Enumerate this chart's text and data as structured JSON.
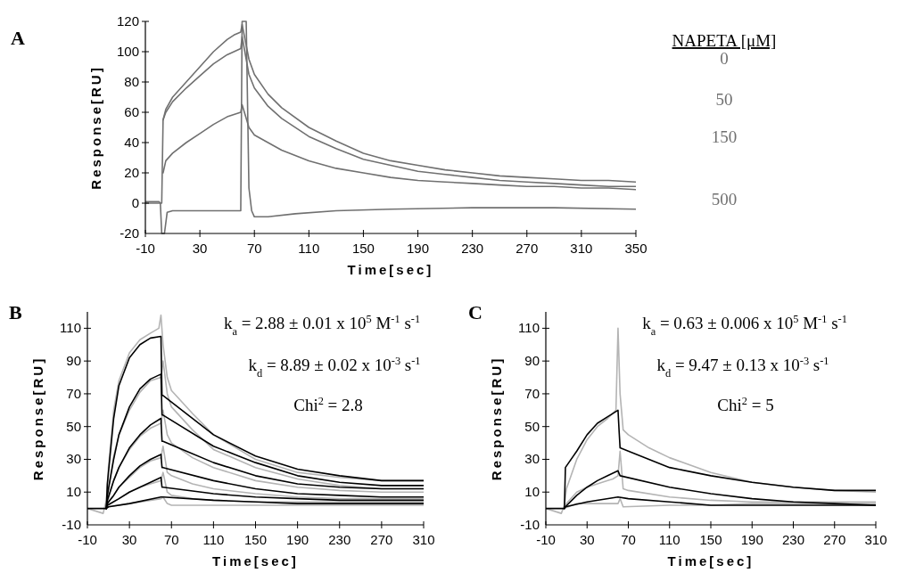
{
  "chart_data": [
    {
      "type": "line",
      "title": "A",
      "xlabel": "Time[sec]",
      "ylabel": "Response[RU]",
      "xlim": [
        -10,
        350
      ],
      "xticks": [
        -10,
        30,
        70,
        110,
        150,
        190,
        230,
        270,
        310,
        350
      ],
      "ylim": [
        -20,
        120
      ],
      "yticks": [
        -20,
        0,
        20,
        40,
        60,
        80,
        100,
        120
      ],
      "legend": "right",
      "legend_title": "NAPETA [μM]",
      "series": [
        {
          "name": "0",
          "color": "#707070",
          "x": [
            -10,
            0,
            2,
            3,
            5,
            10,
            20,
            30,
            40,
            50,
            55,
            60,
            61,
            66,
            70,
            80,
            90,
            110,
            130,
            150,
            170,
            190,
            210,
            230,
            250,
            270,
            290,
            310,
            330,
            350
          ],
          "values": [
            0,
            0,
            0,
            55,
            62,
            70,
            80,
            90,
            100,
            108,
            111,
            113,
            118,
            95,
            85,
            72,
            63,
            50,
            41,
            33,
            28,
            25,
            22,
            20,
            18,
            17,
            16,
            15,
            15,
            14
          ]
        },
        {
          "name": "50",
          "color": "#707070",
          "x": [
            3,
            5,
            10,
            20,
            30,
            40,
            50,
            60,
            61,
            66,
            70,
            80,
            90,
            110,
            130,
            150,
            170,
            190,
            210,
            230,
            250,
            270,
            290,
            310,
            330,
            350
          ],
          "values": [
            55,
            60,
            67,
            76,
            84,
            92,
            98,
            102,
            110,
            85,
            76,
            64,
            56,
            44,
            36,
            29,
            25,
            21,
            19,
            17,
            15,
            14,
            13,
            12,
            11,
            11
          ]
        },
        {
          "name": "150",
          "color": "#707070",
          "x": [
            3,
            5,
            10,
            20,
            30,
            40,
            50,
            60,
            61,
            66,
            70,
            80,
            90,
            110,
            130,
            150,
            170,
            190,
            210,
            230,
            250,
            270,
            290,
            310,
            330,
            350
          ],
          "values": [
            20,
            28,
            33,
            40,
            46,
            52,
            57,
            60,
            65,
            50,
            45,
            40,
            35,
            28,
            23,
            20,
            17,
            15,
            14,
            13,
            12,
            11,
            11,
            10,
            10,
            9
          ]
        },
        {
          "name": "500",
          "color": "#707070",
          "x": [
            -10,
            0,
            1,
            2,
            4,
            6,
            10,
            30,
            60,
            61,
            64,
            66,
            68,
            70,
            80,
            100,
            130,
            170,
            230,
            290,
            350
          ],
          "values": [
            1,
            1,
            0,
            -20,
            -20,
            -6,
            -5,
            -5,
            -5,
            120,
            120,
            10,
            -5,
            -9,
            -9,
            -7,
            -5,
            -4,
            -3,
            -3,
            -4
          ]
        }
      ]
    },
    {
      "type": "line",
      "title": "B",
      "xlabel": "Time[sec]",
      "ylabel": "Response[RU]",
      "xlim": [
        -10,
        310
      ],
      "xticks": [
        -10,
        30,
        70,
        110,
        150,
        190,
        230,
        270,
        310
      ],
      "ylim": [
        -10,
        120
      ],
      "yticks": [
        -10,
        10,
        30,
        50,
        70,
        90,
        110
      ],
      "annotations": [
        "k$_{a}$ = 2.88 ± 0.01 x 10$^{5}$ M$^{-1}$ s$^{-1}$",
        "k$_{d}$ = 8.89 ± 0.02 x 10$^{-3}$ s$^{-1}$",
        "Chi$^{2}$ = 2.8"
      ],
      "series": [
        {
          "color": "#b4b4b4",
          "x": [
            -10,
            5,
            8,
            10,
            15,
            20,
            30,
            40,
            50,
            58,
            60,
            62,
            66,
            70,
            90,
            110,
            150,
            190,
            230,
            270,
            310
          ],
          "values": [
            0,
            -3,
            5,
            25,
            60,
            78,
            95,
            103,
            107,
            110,
            118,
            100,
            80,
            72,
            58,
            45,
            30,
            22,
            19,
            17,
            17
          ]
        },
        {
          "color": "#b4b4b4",
          "x": [
            8,
            10,
            15,
            20,
            30,
            40,
            50,
            60,
            62,
            66,
            70,
            90,
            110,
            150,
            190,
            230,
            270,
            310
          ],
          "values": [
            3,
            12,
            32,
            45,
            60,
            71,
            78,
            80,
            90,
            70,
            62,
            48,
            36,
            25,
            18,
            14,
            12,
            12
          ]
        },
        {
          "color": "#b4b4b4",
          "x": [
            8,
            10,
            15,
            20,
            30,
            40,
            50,
            60,
            62,
            66,
            70,
            90,
            110,
            150,
            190,
            230,
            270,
            310
          ],
          "values": [
            2,
            6,
            17,
            25,
            36,
            44,
            49,
            52,
            60,
            45,
            40,
            31,
            25,
            17,
            13,
            11,
            10,
            10
          ]
        },
        {
          "color": "#b4b4b4",
          "x": [
            8,
            10,
            15,
            20,
            30,
            40,
            50,
            60,
            62,
            66,
            70,
            90,
            110,
            150,
            190,
            230,
            270,
            310
          ],
          "values": [
            1,
            4,
            8,
            13,
            19,
            25,
            29,
            31,
            38,
            22,
            20,
            15,
            12,
            9,
            7,
            6,
            6,
            6
          ]
        },
        {
          "color": "#b4b4b4",
          "x": [
            8,
            10,
            20,
            30,
            40,
            50,
            60,
            62,
            66,
            70,
            90,
            110,
            150,
            190,
            230,
            270,
            310
          ],
          "values": [
            1,
            2,
            6,
            10,
            13,
            15,
            17,
            22,
            10,
            8,
            6,
            5,
            4,
            4,
            4,
            4,
            4
          ]
        },
        {
          "color": "#b4b4b4",
          "x": [
            8,
            10,
            30,
            60,
            62,
            66,
            70,
            110,
            150,
            190,
            230,
            270,
            310
          ],
          "values": [
            0,
            1,
            3,
            6,
            7,
            3,
            2,
            2,
            2,
            2,
            2,
            2,
            2
          ]
        },
        {
          "color": "#000000",
          "x": [
            -10,
            8,
            9,
            15,
            20,
            30,
            40,
            50,
            60,
            61,
            62,
            110,
            150,
            190,
            230,
            270,
            310
          ],
          "values": [
            0,
            0,
            15,
            55,
            75,
            92,
            100,
            104,
            105,
            69,
            69,
            45,
            32,
            24,
            20,
            17,
            17
          ]
        },
        {
          "color": "#000000",
          "x": [
            8,
            9,
            15,
            20,
            30,
            40,
            50,
            60,
            61,
            62,
            110,
            150,
            190,
            230,
            270,
            310
          ],
          "values": [
            0,
            8,
            30,
            45,
            62,
            73,
            79,
            82,
            57,
            57,
            38,
            28,
            20,
            16,
            14,
            14
          ]
        },
        {
          "color": "#000000",
          "x": [
            8,
            9,
            15,
            20,
            30,
            40,
            50,
            60,
            61,
            62,
            110,
            150,
            190,
            230,
            270,
            310
          ],
          "values": [
            0,
            5,
            17,
            25,
            37,
            45,
            51,
            55,
            41,
            41,
            28,
            20,
            15,
            13,
            12,
            12
          ]
        },
        {
          "color": "#000000",
          "x": [
            8,
            9,
            15,
            20,
            30,
            40,
            50,
            60,
            61,
            62,
            110,
            150,
            190,
            230,
            270,
            310
          ],
          "values": [
            0,
            3,
            8,
            13,
            20,
            26,
            30,
            33,
            25,
            25,
            17,
            12,
            9,
            8,
            7,
            7
          ]
        },
        {
          "color": "#000000",
          "x": [
            8,
            9,
            20,
            30,
            40,
            50,
            60,
            61,
            62,
            110,
            150,
            190,
            230,
            270,
            310
          ],
          "values": [
            0,
            2,
            6,
            10,
            13,
            16,
            19,
            13,
            13,
            9,
            7,
            6,
            5,
            5,
            5
          ]
        },
        {
          "color": "#000000",
          "x": [
            8,
            10,
            30,
            60,
            62,
            110,
            150,
            190,
            230,
            270,
            310
          ],
          "values": [
            0,
            1,
            3,
            7,
            7,
            5,
            4,
            3,
            3,
            3,
            3
          ]
        }
      ]
    },
    {
      "type": "line",
      "title": "C",
      "xlabel": "Time[sec]",
      "ylabel": "Response[RU]",
      "xlim": [
        -10,
        310
      ],
      "xticks": [
        -10,
        30,
        70,
        110,
        150,
        190,
        230,
        270,
        310
      ],
      "ylim": [
        -10,
        120
      ],
      "yticks": [
        -10,
        10,
        30,
        50,
        70,
        90,
        110
      ],
      "annotations": [
        "k$_{a}$ = 0.63 ± 0.006 x 10$^{5}$ M$^{-1}$ s$^{-1}$",
        "k$_{d}$ = 9.47 ± 0.13 x 10$^{-3}$ s$^{-1}$",
        "Chi$^{2}$ = 5"
      ],
      "series": [
        {
          "color": "#b4b4b4",
          "x": [
            -10,
            5,
            8,
            10,
            20,
            30,
            40,
            50,
            58,
            60,
            62,
            65,
            70,
            90,
            110,
            150,
            190,
            230,
            270,
            310
          ],
          "values": [
            0,
            -3,
            2,
            12,
            30,
            42,
            50,
            55,
            60,
            110,
            70,
            48,
            45,
            37,
            31,
            22,
            16,
            13,
            11,
            10
          ]
        },
        {
          "color": "#b4b4b4",
          "x": [
            8,
            10,
            20,
            30,
            40,
            50,
            55,
            60,
            62,
            65,
            70,
            110,
            150,
            190,
            230,
            270,
            310
          ],
          "values": [
            0,
            3,
            10,
            13,
            15,
            17,
            18,
            20,
            35,
            12,
            11,
            7,
            5,
            4,
            4,
            4,
            4
          ]
        },
        {
          "color": "#b4b4b4",
          "x": [
            8,
            20,
            50,
            60,
            62,
            65,
            110,
            150,
            190,
            230,
            270,
            310
          ],
          "values": [
            0,
            3,
            3,
            3,
            6,
            1,
            2,
            2,
            3,
            3,
            3,
            3
          ]
        },
        {
          "color": "#000000",
          "x": [
            -10,
            8,
            9,
            20,
            30,
            40,
            50,
            60,
            61,
            62,
            70,
            110,
            150,
            190,
            230,
            270,
            310
          ],
          "values": [
            0,
            0,
            25,
            35,
            45,
            52,
            56,
            60,
            48,
            37,
            35,
            25,
            20,
            16,
            13,
            11,
            11
          ]
        },
        {
          "color": "#000000",
          "x": [
            8,
            9,
            20,
            30,
            40,
            50,
            60,
            62,
            110,
            150,
            190,
            230,
            270,
            310
          ],
          "values": [
            0,
            1,
            8,
            13,
            17,
            20,
            23,
            20,
            13,
            9,
            6,
            4,
            3,
            2
          ]
        },
        {
          "color": "#000000",
          "x": [
            8,
            9,
            30,
            60,
            70,
            110,
            150,
            310
          ],
          "values": [
            0,
            1,
            4,
            7,
            6,
            4,
            2,
            2
          ]
        }
      ]
    }
  ]
}
